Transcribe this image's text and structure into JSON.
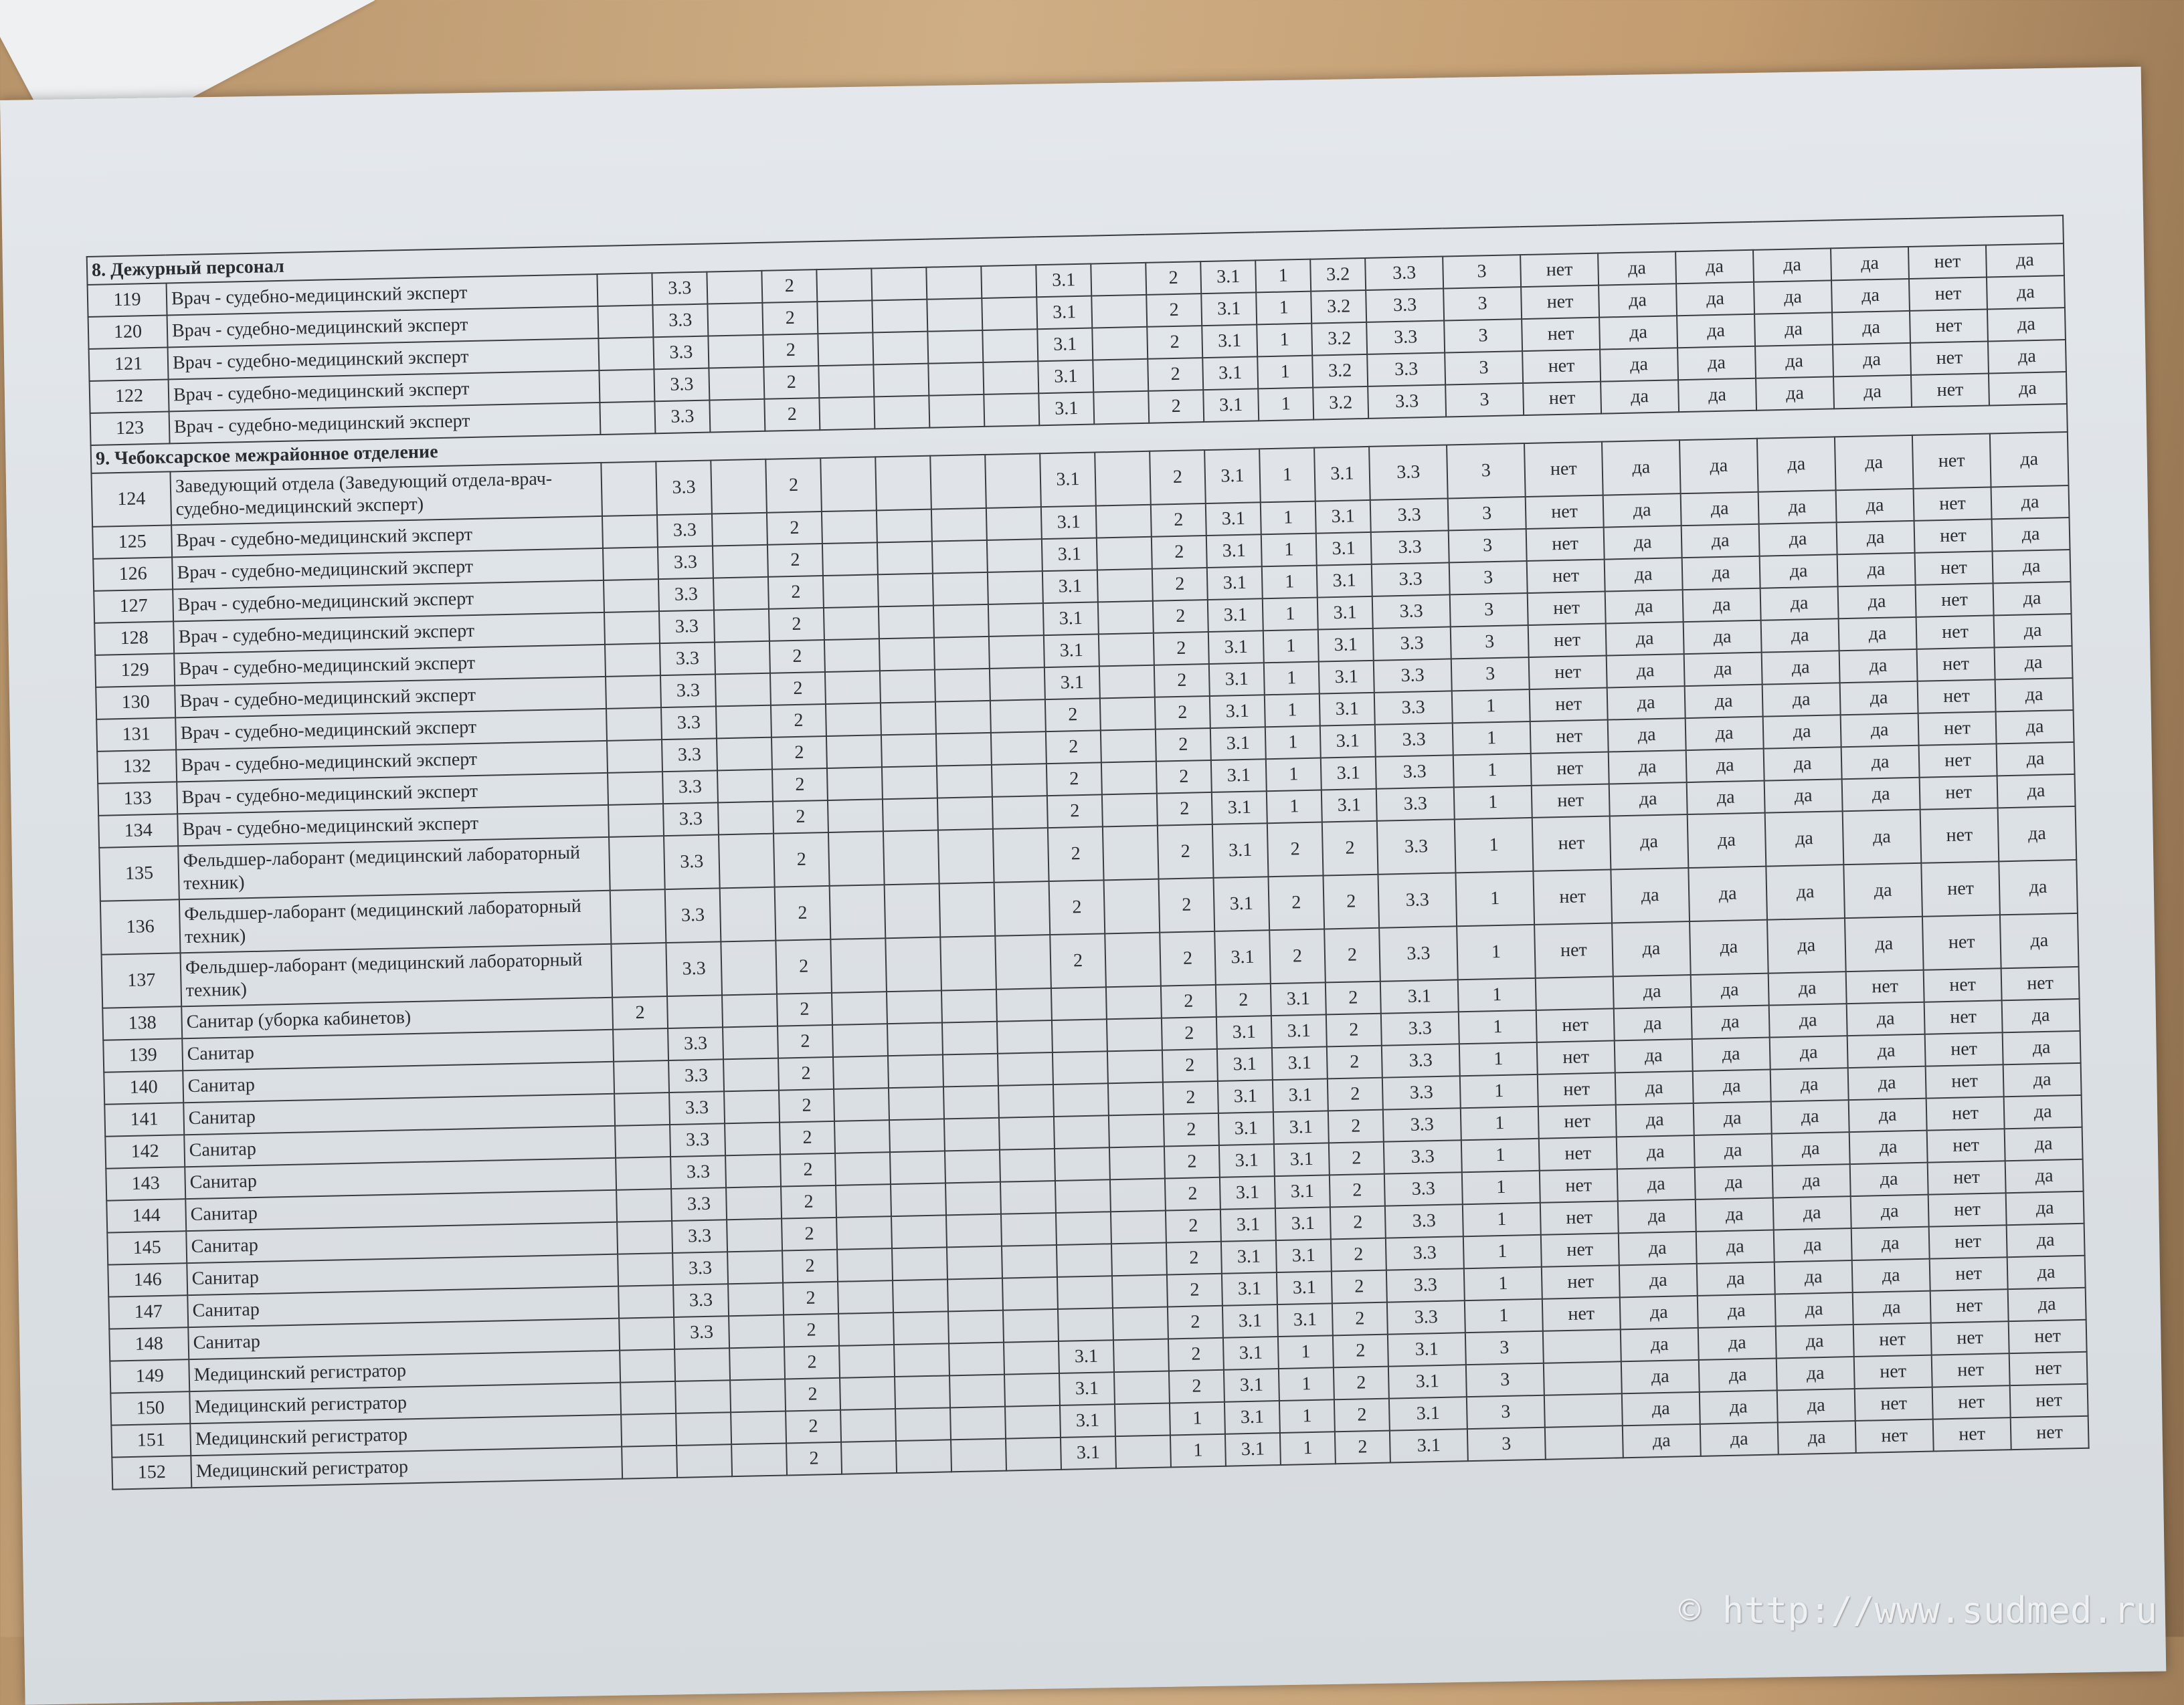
{
  "sections": [
    {
      "title": "8. Дежурный персонал",
      "rows": [
        {
          "n": "119",
          "name": "Врач - судебно-медицинский эксперт",
          "v": [
            "",
            "3.3",
            "",
            "2",
            "",
            "",
            "",
            "",
            "3.1",
            "",
            "2",
            "3.1",
            "1",
            "3.2",
            "3.3",
            "3",
            "нет",
            "да",
            "да",
            "да",
            "да",
            "нет",
            "да"
          ]
        },
        {
          "n": "120",
          "name": "Врач - судебно-медицинский эксперт",
          "v": [
            "",
            "3.3",
            "",
            "2",
            "",
            "",
            "",
            "",
            "3.1",
            "",
            "2",
            "3.1",
            "1",
            "3.2",
            "3.3",
            "3",
            "нет",
            "да",
            "да",
            "да",
            "да",
            "нет",
            "да"
          ]
        },
        {
          "n": "121",
          "name": "Врач - судебно-медицинский эксперт",
          "v": [
            "",
            "3.3",
            "",
            "2",
            "",
            "",
            "",
            "",
            "3.1",
            "",
            "2",
            "3.1",
            "1",
            "3.2",
            "3.3",
            "3",
            "нет",
            "да",
            "да",
            "да",
            "да",
            "нет",
            "да"
          ]
        },
        {
          "n": "122",
          "name": "Врач - судебно-медицинский эксперт",
          "v": [
            "",
            "3.3",
            "",
            "2",
            "",
            "",
            "",
            "",
            "3.1",
            "",
            "2",
            "3.1",
            "1",
            "3.2",
            "3.3",
            "3",
            "нет",
            "да",
            "да",
            "да",
            "да",
            "нет",
            "да"
          ]
        },
        {
          "n": "123",
          "name": "Врач - судебно-медицинский эксперт",
          "v": [
            "",
            "3.3",
            "",
            "2",
            "",
            "",
            "",
            "",
            "3.1",
            "",
            "2",
            "3.1",
            "1",
            "3.2",
            "3.3",
            "3",
            "нет",
            "да",
            "да",
            "да",
            "да",
            "нет",
            "да"
          ]
        }
      ]
    },
    {
      "title": "9. Чебоксарское межрайонное отделение",
      "rows": [
        {
          "n": "124",
          "name": "Заведующий отдела (Заведующий отдела-врач-судебно-медицинский эксперт)",
          "tall": true,
          "v": [
            "",
            "3.3",
            "",
            "2",
            "",
            "",
            "",
            "",
            "3.1",
            "",
            "2",
            "3.1",
            "1",
            "3.1",
            "3.3",
            "3",
            "нет",
            "да",
            "да",
            "да",
            "да",
            "нет",
            "да"
          ]
        },
        {
          "n": "125",
          "name": "Врач - судебно-медицинский эксперт",
          "v": [
            "",
            "3.3",
            "",
            "2",
            "",
            "",
            "",
            "",
            "3.1",
            "",
            "2",
            "3.1",
            "1",
            "3.1",
            "3.3",
            "3",
            "нет",
            "да",
            "да",
            "да",
            "да",
            "нет",
            "да"
          ]
        },
        {
          "n": "126",
          "name": "Врач - судебно-медицинский эксперт",
          "v": [
            "",
            "3.3",
            "",
            "2",
            "",
            "",
            "",
            "",
            "3.1",
            "",
            "2",
            "3.1",
            "1",
            "3.1",
            "3.3",
            "3",
            "нет",
            "да",
            "да",
            "да",
            "да",
            "нет",
            "да"
          ]
        },
        {
          "n": "127",
          "name": "Врач - судебно-медицинский эксперт",
          "v": [
            "",
            "3.3",
            "",
            "2",
            "",
            "",
            "",
            "",
            "3.1",
            "",
            "2",
            "3.1",
            "1",
            "3.1",
            "3.3",
            "3",
            "нет",
            "да",
            "да",
            "да",
            "да",
            "нет",
            "да"
          ]
        },
        {
          "n": "128",
          "name": "Врач - судебно-медицинский эксперт",
          "v": [
            "",
            "3.3",
            "",
            "2",
            "",
            "",
            "",
            "",
            "3.1",
            "",
            "2",
            "3.1",
            "1",
            "3.1",
            "3.3",
            "3",
            "нет",
            "да",
            "да",
            "да",
            "да",
            "нет",
            "да"
          ]
        },
        {
          "n": "129",
          "name": "Врач - судебно-медицинский эксперт",
          "v": [
            "",
            "3.3",
            "",
            "2",
            "",
            "",
            "",
            "",
            "3.1",
            "",
            "2",
            "3.1",
            "1",
            "3.1",
            "3.3",
            "3",
            "нет",
            "да",
            "да",
            "да",
            "да",
            "нет",
            "да"
          ]
        },
        {
          "n": "130",
          "name": "Врач - судебно-медицинский эксперт",
          "v": [
            "",
            "3.3",
            "",
            "2",
            "",
            "",
            "",
            "",
            "3.1",
            "",
            "2",
            "3.1",
            "1",
            "3.1",
            "3.3",
            "3",
            "нет",
            "да",
            "да",
            "да",
            "да",
            "нет",
            "да"
          ]
        },
        {
          "n": "131",
          "name": "Врач - судебно-медицинский эксперт",
          "v": [
            "",
            "3.3",
            "",
            "2",
            "",
            "",
            "",
            "",
            "2",
            "",
            "2",
            "3.1",
            "1",
            "3.1",
            "3.3",
            "1",
            "нет",
            "да",
            "да",
            "да",
            "да",
            "нет",
            "да"
          ]
        },
        {
          "n": "132",
          "name": "Врач - судебно-медицинский эксперт",
          "v": [
            "",
            "3.3",
            "",
            "2",
            "",
            "",
            "",
            "",
            "2",
            "",
            "2",
            "3.1",
            "1",
            "3.1",
            "3.3",
            "1",
            "нет",
            "да",
            "да",
            "да",
            "да",
            "нет",
            "да"
          ]
        },
        {
          "n": "133",
          "name": "Врач - судебно-медицинский эксперт",
          "v": [
            "",
            "3.3",
            "",
            "2",
            "",
            "",
            "",
            "",
            "2",
            "",
            "2",
            "3.1",
            "1",
            "3.1",
            "3.3",
            "1",
            "нет",
            "да",
            "да",
            "да",
            "да",
            "нет",
            "да"
          ]
        },
        {
          "n": "134",
          "name": "Врач - судебно-медицинский эксперт",
          "v": [
            "",
            "3.3",
            "",
            "2",
            "",
            "",
            "",
            "",
            "2",
            "",
            "2",
            "3.1",
            "1",
            "3.1",
            "3.3",
            "1",
            "нет",
            "да",
            "да",
            "да",
            "да",
            "нет",
            "да"
          ]
        },
        {
          "n": "135",
          "name": "Фельдшер-лаборант (медицинский лабораторный техник)",
          "tall": true,
          "v": [
            "",
            "3.3",
            "",
            "2",
            "",
            "",
            "",
            "",
            "2",
            "",
            "2",
            "3.1",
            "2",
            "2",
            "3.3",
            "1",
            "нет",
            "да",
            "да",
            "да",
            "да",
            "нет",
            "да"
          ]
        },
        {
          "n": "136",
          "name": "Фельдшер-лаборант (медицинский лабораторный техник)",
          "tall": true,
          "v": [
            "",
            "3.3",
            "",
            "2",
            "",
            "",
            "",
            "",
            "2",
            "",
            "2",
            "3.1",
            "2",
            "2",
            "3.3",
            "1",
            "нет",
            "да",
            "да",
            "да",
            "да",
            "нет",
            "да"
          ]
        },
        {
          "n": "137",
          "name": "Фельдшер-лаборант (медицинский лабораторный техник)",
          "tall": true,
          "v": [
            "",
            "3.3",
            "",
            "2",
            "",
            "",
            "",
            "",
            "2",
            "",
            "2",
            "3.1",
            "2",
            "2",
            "3.3",
            "1",
            "нет",
            "да",
            "да",
            "да",
            "да",
            "нет",
            "да"
          ]
        },
        {
          "n": "138",
          "name": "Санитар (уборка кабинетов)",
          "v": [
            "2",
            "",
            "",
            "2",
            "",
            "",
            "",
            "",
            "",
            "",
            "2",
            "2",
            "3.1",
            "2",
            "3.1",
            "1",
            "",
            "да",
            "да",
            "да",
            "нет",
            "нет",
            "нет"
          ]
        },
        {
          "n": "139",
          "name": "Санитар",
          "v": [
            "",
            "3.3",
            "",
            "2",
            "",
            "",
            "",
            "",
            "",
            "",
            "2",
            "3.1",
            "3.1",
            "2",
            "3.3",
            "1",
            "нет",
            "да",
            "да",
            "да",
            "да",
            "нет",
            "да"
          ]
        },
        {
          "n": "140",
          "name": "Санитар",
          "v": [
            "",
            "3.3",
            "",
            "2",
            "",
            "",
            "",
            "",
            "",
            "",
            "2",
            "3.1",
            "3.1",
            "2",
            "3.3",
            "1",
            "нет",
            "да",
            "да",
            "да",
            "да",
            "нет",
            "да"
          ]
        },
        {
          "n": "141",
          "name": "Санитар",
          "v": [
            "",
            "3.3",
            "",
            "2",
            "",
            "",
            "",
            "",
            "",
            "",
            "2",
            "3.1",
            "3.1",
            "2",
            "3.3",
            "1",
            "нет",
            "да",
            "да",
            "да",
            "да",
            "нет",
            "да"
          ]
        },
        {
          "n": "142",
          "name": "Санитар",
          "v": [
            "",
            "3.3",
            "",
            "2",
            "",
            "",
            "",
            "",
            "",
            "",
            "2",
            "3.1",
            "3.1",
            "2",
            "3.3",
            "1",
            "нет",
            "да",
            "да",
            "да",
            "да",
            "нет",
            "да"
          ]
        },
        {
          "n": "143",
          "name": "Санитар",
          "v": [
            "",
            "3.3",
            "",
            "2",
            "",
            "",
            "",
            "",
            "",
            "",
            "2",
            "3.1",
            "3.1",
            "2",
            "3.3",
            "1",
            "нет",
            "да",
            "да",
            "да",
            "да",
            "нет",
            "да"
          ]
        },
        {
          "n": "144",
          "name": "Санитар",
          "v": [
            "",
            "3.3",
            "",
            "2",
            "",
            "",
            "",
            "",
            "",
            "",
            "2",
            "3.1",
            "3.1",
            "2",
            "3.3",
            "1",
            "нет",
            "да",
            "да",
            "да",
            "да",
            "нет",
            "да"
          ]
        },
        {
          "n": "145",
          "name": "Санитар",
          "v": [
            "",
            "3.3",
            "",
            "2",
            "",
            "",
            "",
            "",
            "",
            "",
            "2",
            "3.1",
            "3.1",
            "2",
            "3.3",
            "1",
            "нет",
            "да",
            "да",
            "да",
            "да",
            "нет",
            "да"
          ]
        },
        {
          "n": "146",
          "name": "Санитар",
          "v": [
            "",
            "3.3",
            "",
            "2",
            "",
            "",
            "",
            "",
            "",
            "",
            "2",
            "3.1",
            "3.1",
            "2",
            "3.3",
            "1",
            "нет",
            "да",
            "да",
            "да",
            "да",
            "нет",
            "да"
          ]
        },
        {
          "n": "147",
          "name": "Санитар",
          "v": [
            "",
            "3.3",
            "",
            "2",
            "",
            "",
            "",
            "",
            "",
            "",
            "2",
            "3.1",
            "3.1",
            "2",
            "3.3",
            "1",
            "нет",
            "да",
            "да",
            "да",
            "да",
            "нет",
            "да"
          ]
        },
        {
          "n": "148",
          "name": "Санитар",
          "v": [
            "",
            "3.3",
            "",
            "2",
            "",
            "",
            "",
            "",
            "",
            "",
            "2",
            "3.1",
            "3.1",
            "2",
            "3.3",
            "1",
            "нет",
            "да",
            "да",
            "да",
            "да",
            "нет",
            "да"
          ]
        },
        {
          "n": "149",
          "name": "Медицинский регистратор",
          "v": [
            "",
            "",
            "",
            "2",
            "",
            "",
            "",
            "",
            "3.1",
            "",
            "2",
            "3.1",
            "1",
            "2",
            "3.1",
            "3",
            "",
            "да",
            "да",
            "да",
            "нет",
            "нет",
            "нет"
          ]
        },
        {
          "n": "150",
          "name": "Медицинский регистратор",
          "v": [
            "",
            "",
            "",
            "2",
            "",
            "",
            "",
            "",
            "3.1",
            "",
            "2",
            "3.1",
            "1",
            "2",
            "3.1",
            "3",
            "",
            "да",
            "да",
            "да",
            "нет",
            "нет",
            "нет"
          ]
        },
        {
          "n": "151",
          "name": "Медицинский регистратор",
          "v": [
            "",
            "",
            "",
            "2",
            "",
            "",
            "",
            "",
            "3.1",
            "",
            "1",
            "3.1",
            "1",
            "2",
            "3.1",
            "3",
            "",
            "да",
            "да",
            "да",
            "нет",
            "нет",
            "нет"
          ]
        },
        {
          "n": "152",
          "name": "Медицинский регистратор",
          "v": [
            "",
            "",
            "",
            "2",
            "",
            "",
            "",
            "",
            "3.1",
            "",
            "1",
            "3.1",
            "1",
            "2",
            "3.1",
            "3",
            "",
            "да",
            "да",
            "да",
            "нет",
            "нет",
            "нет"
          ]
        }
      ]
    }
  ],
  "watermark": "© http://www.sudmed.ru"
}
